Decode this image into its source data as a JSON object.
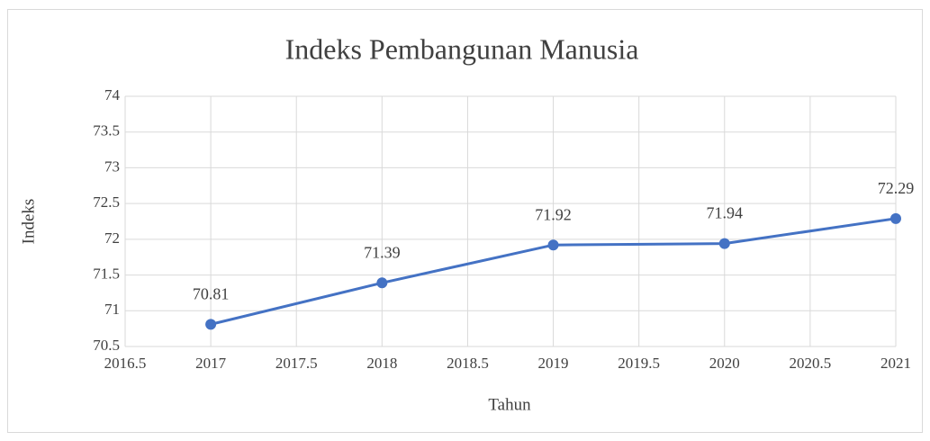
{
  "chart_data": {
    "type": "line",
    "title": "Indeks Pembangunan Manusia",
    "x_label": "Tahun",
    "y_label": "Indeks",
    "x": [
      2017,
      2018,
      2019,
      2020,
      2021
    ],
    "series": [
      {
        "name": "Indeks",
        "color": "#4472c4",
        "values": [
          70.81,
          71.39,
          71.92,
          71.94,
          72.29
        ]
      }
    ],
    "xlim": [
      2016.5,
      2021
    ],
    "xticks": [
      2016.5,
      2017,
      2017.5,
      2018,
      2018.5,
      2019,
      2019.5,
      2020,
      2020.5,
      2021
    ],
    "ylim": [
      70.5,
      74
    ],
    "yticks": [
      70.5,
      71,
      71.5,
      72,
      72.5,
      73,
      73.5,
      74
    ],
    "grid": true
  }
}
